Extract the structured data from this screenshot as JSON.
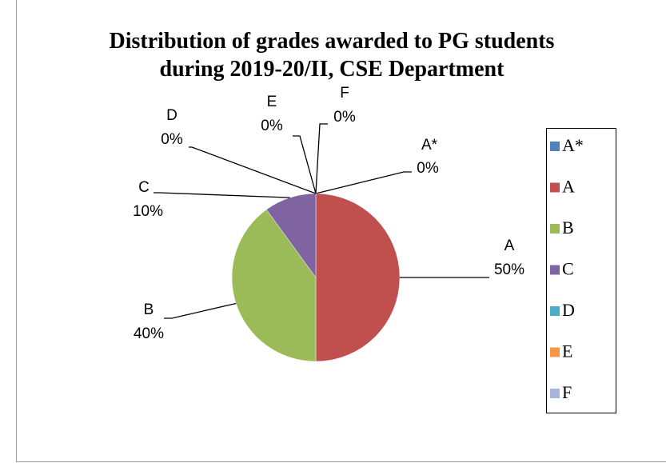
{
  "chart_data": {
    "type": "pie",
    "title": "Distribution of grades awarded to PG students during 2019-20/II, CSE Department",
    "categories": [
      "A*",
      "A",
      "B",
      "C",
      "D",
      "E",
      "F"
    ],
    "values": [
      0,
      50,
      40,
      10,
      0,
      0,
      0
    ],
    "value_labels": [
      "0%",
      "50%",
      "40%",
      "10%",
      "0%",
      "0%",
      "0%"
    ],
    "colors": [
      "#4f81bd",
      "#c0504d",
      "#9bbb59",
      "#8064a2",
      "#4bacc6",
      "#f79646",
      "#a5b6da"
    ],
    "legend": "right"
  }
}
